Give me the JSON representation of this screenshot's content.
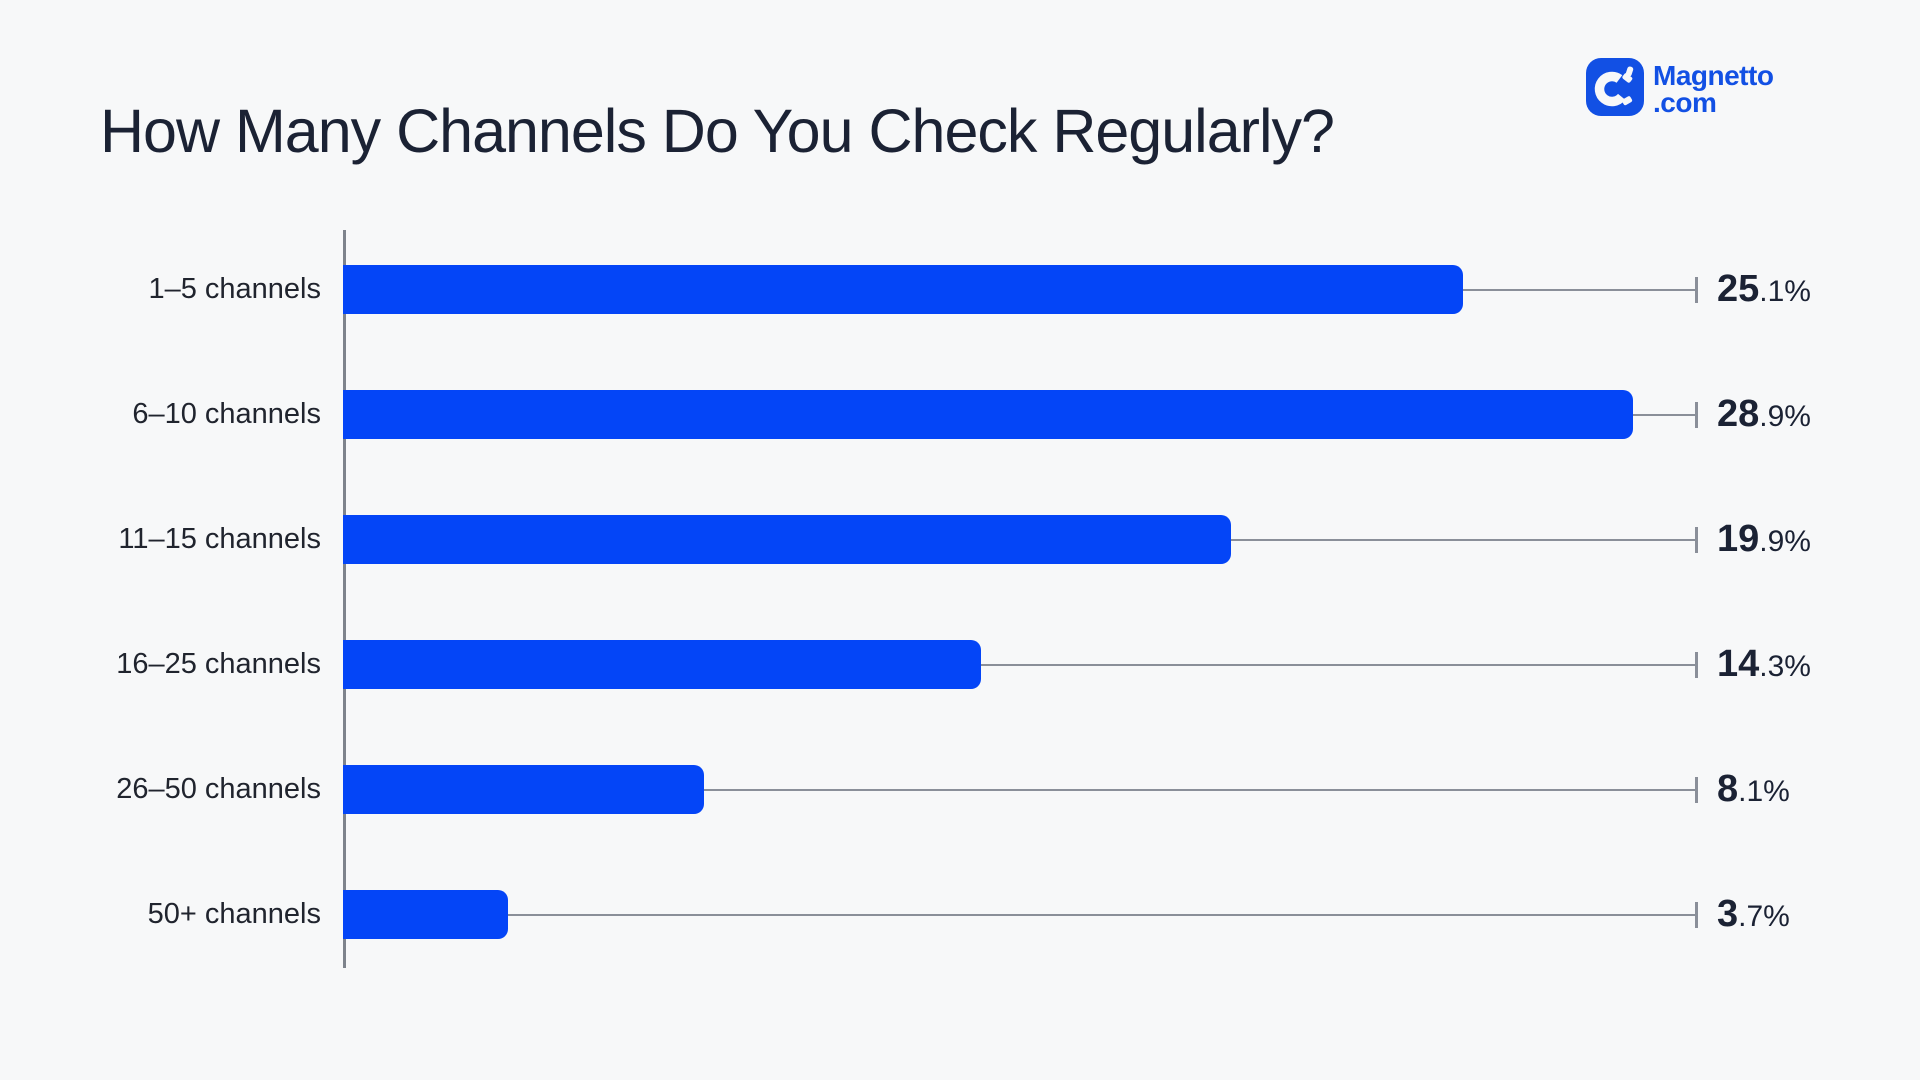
{
  "page": {
    "title": "How Many Channels Do You Check Regularly?",
    "background": "#F7F8F9"
  },
  "logo": {
    "brand": "Magnetto",
    "tld": ".com",
    "color": "#1250E4",
    "icon": "magnet-icon"
  },
  "chart_data": {
    "type": "bar",
    "orientation": "horizontal",
    "title": "How Many Channels Do You Check Regularly?",
    "categories": [
      "1–5 channels",
      "6–10 channels",
      "11–15 channels",
      "16–25 channels",
      "26–50 channels",
      "50+ channels"
    ],
    "values": [
      25.1,
      28.9,
      19.9,
      14.3,
      8.1,
      3.7
    ],
    "unit": "%",
    "value_labels": [
      "25.1%",
      "28.9%",
      "19.9%",
      "14.3%",
      "8.1%",
      "3.7%"
    ],
    "xlim": [
      0,
      30.34
    ],
    "grid": false,
    "legend": "none",
    "bar_color": "#0445F7",
    "axis_color": "#7E838C",
    "leader_color": "#8A8F99",
    "text_color": "#1B2234",
    "value_style": "integer part bold, decimal part regular"
  }
}
